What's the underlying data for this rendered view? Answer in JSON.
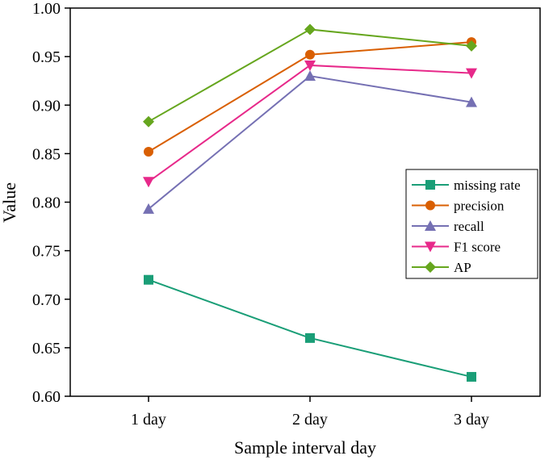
{
  "chart_data": {
    "type": "line",
    "title": "",
    "xlabel": "Sample interval day",
    "ylabel": "Value",
    "categories": [
      "1 day",
      "2 day",
      "3 day"
    ],
    "ylim": [
      0.6,
      1.0
    ],
    "yticks": [
      "0.60",
      "0.65",
      "0.70",
      "0.75",
      "0.80",
      "0.85",
      "0.90",
      "0.95",
      "1.00"
    ],
    "grid": false,
    "legend_position": "right",
    "series": [
      {
        "name": "missing rate",
        "values": [
          0.72,
          0.66,
          0.62
        ],
        "color": "#1a9e77",
        "marker": "square"
      },
      {
        "name": "precision",
        "values": [
          0.852,
          0.952,
          0.965
        ],
        "color": "#d95f02",
        "marker": "circle"
      },
      {
        "name": "recall",
        "values": [
          0.793,
          0.93,
          0.903
        ],
        "color": "#7570b3",
        "marker": "triangle-up"
      },
      {
        "name": "F1 score",
        "values": [
          0.821,
          0.941,
          0.933
        ],
        "color": "#e7298a",
        "marker": "triangle-down"
      },
      {
        "name": "AP",
        "values": [
          0.883,
          0.978,
          0.961
        ],
        "color": "#66a61e",
        "marker": "diamond"
      }
    ]
  }
}
